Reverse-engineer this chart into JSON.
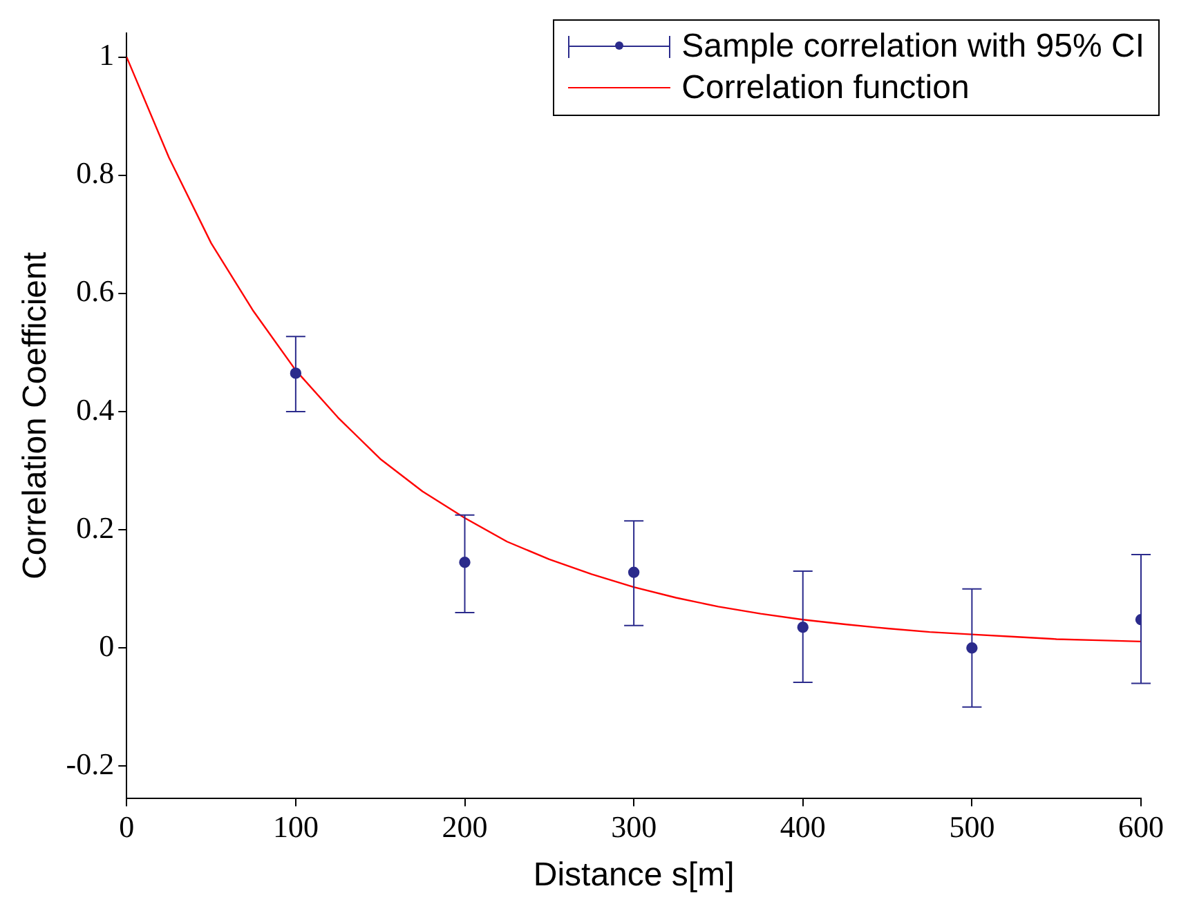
{
  "chart_data": {
    "type": "scatter",
    "xlabel": "Distance s[m]",
    "ylabel": "Correlation Coefficient",
    "xlim": [
      0,
      600
    ],
    "xticks": [
      0,
      100,
      200,
      300,
      400,
      500,
      600
    ],
    "ylim": [
      -0.254,
      1.04
    ],
    "yticks": [
      -0.2,
      0,
      0.2,
      0.4,
      0.6,
      0.8,
      1
    ],
    "grid": false,
    "legend": "top right",
    "series": [
      {
        "name": "Sample correlation with 95% CI",
        "color": "#2b2b8c",
        "marker": "circle",
        "x": [
          100,
          200,
          300,
          400,
          500,
          600
        ],
        "values": [
          0.465,
          0.145,
          0.128,
          0.035,
          0.0,
          0.048
        ],
        "errors": [
          [
            0.4,
            0.527
          ],
          [
            0.06,
            0.225
          ],
          [
            0.038,
            0.215
          ],
          [
            -0.058,
            0.13
          ],
          [
            -0.1,
            0.1
          ],
          [
            -0.06,
            0.158
          ]
        ]
      },
      {
        "name": "Correlation function",
        "type": "line",
        "color": "#ff0000",
        "marker": "none",
        "line_style": "solid",
        "x": [
          0,
          25,
          50,
          75,
          100,
          125,
          150,
          175,
          200,
          225,
          250,
          275,
          300,
          325,
          350,
          375,
          400,
          425,
          450,
          475,
          500,
          525,
          550,
          575,
          600
        ],
        "values": [
          1,
          0.83,
          0.685,
          0.57,
          0.47,
          0.39,
          0.32,
          0.265,
          0.22,
          0.18,
          0.15,
          0.125,
          0.103,
          0.085,
          0.07,
          0.058,
          0.048,
          0.04,
          0.033,
          0.027,
          0.023,
          0.019,
          0.015,
          0.013,
          0.011
        ]
      }
    ]
  }
}
